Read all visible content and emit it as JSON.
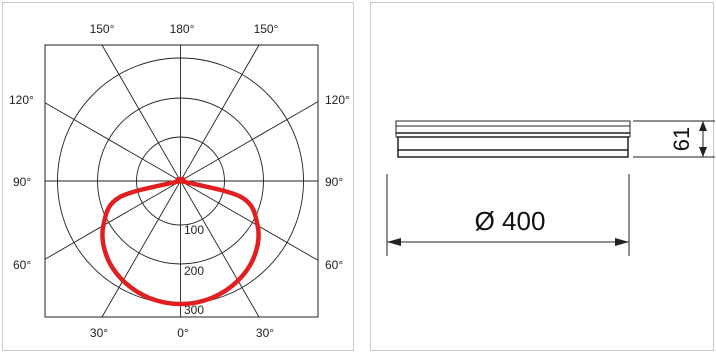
{
  "polar_diagram": {
    "angle_labels_top": [
      "150°",
      "180°",
      "150°"
    ],
    "angle_labels_left": [
      "120°",
      "90°",
      "60°"
    ],
    "angle_labels_right": [
      "120°",
      "90°",
      "60°"
    ],
    "angle_labels_bottom": [
      "30°",
      "0°",
      "30°"
    ],
    "ring_labels": [
      "100",
      "200",
      "300"
    ],
    "curve_color": "#e02020"
  },
  "chart_data": {
    "type": "polar",
    "angles_deg": [
      0,
      15,
      30,
      45,
      60,
      75,
      90,
      105,
      120,
      135,
      150,
      165,
      180
    ],
    "intensity_cd": [
      300,
      295,
      280,
      255,
      215,
      150,
      0,
      0,
      0,
      0,
      0,
      0,
      0
    ],
    "rings": [
      100,
      200,
      300
    ],
    "title": "",
    "grid": true
  },
  "dimension_drawing": {
    "diameter_label": "Ø 400",
    "height_label": "61"
  }
}
